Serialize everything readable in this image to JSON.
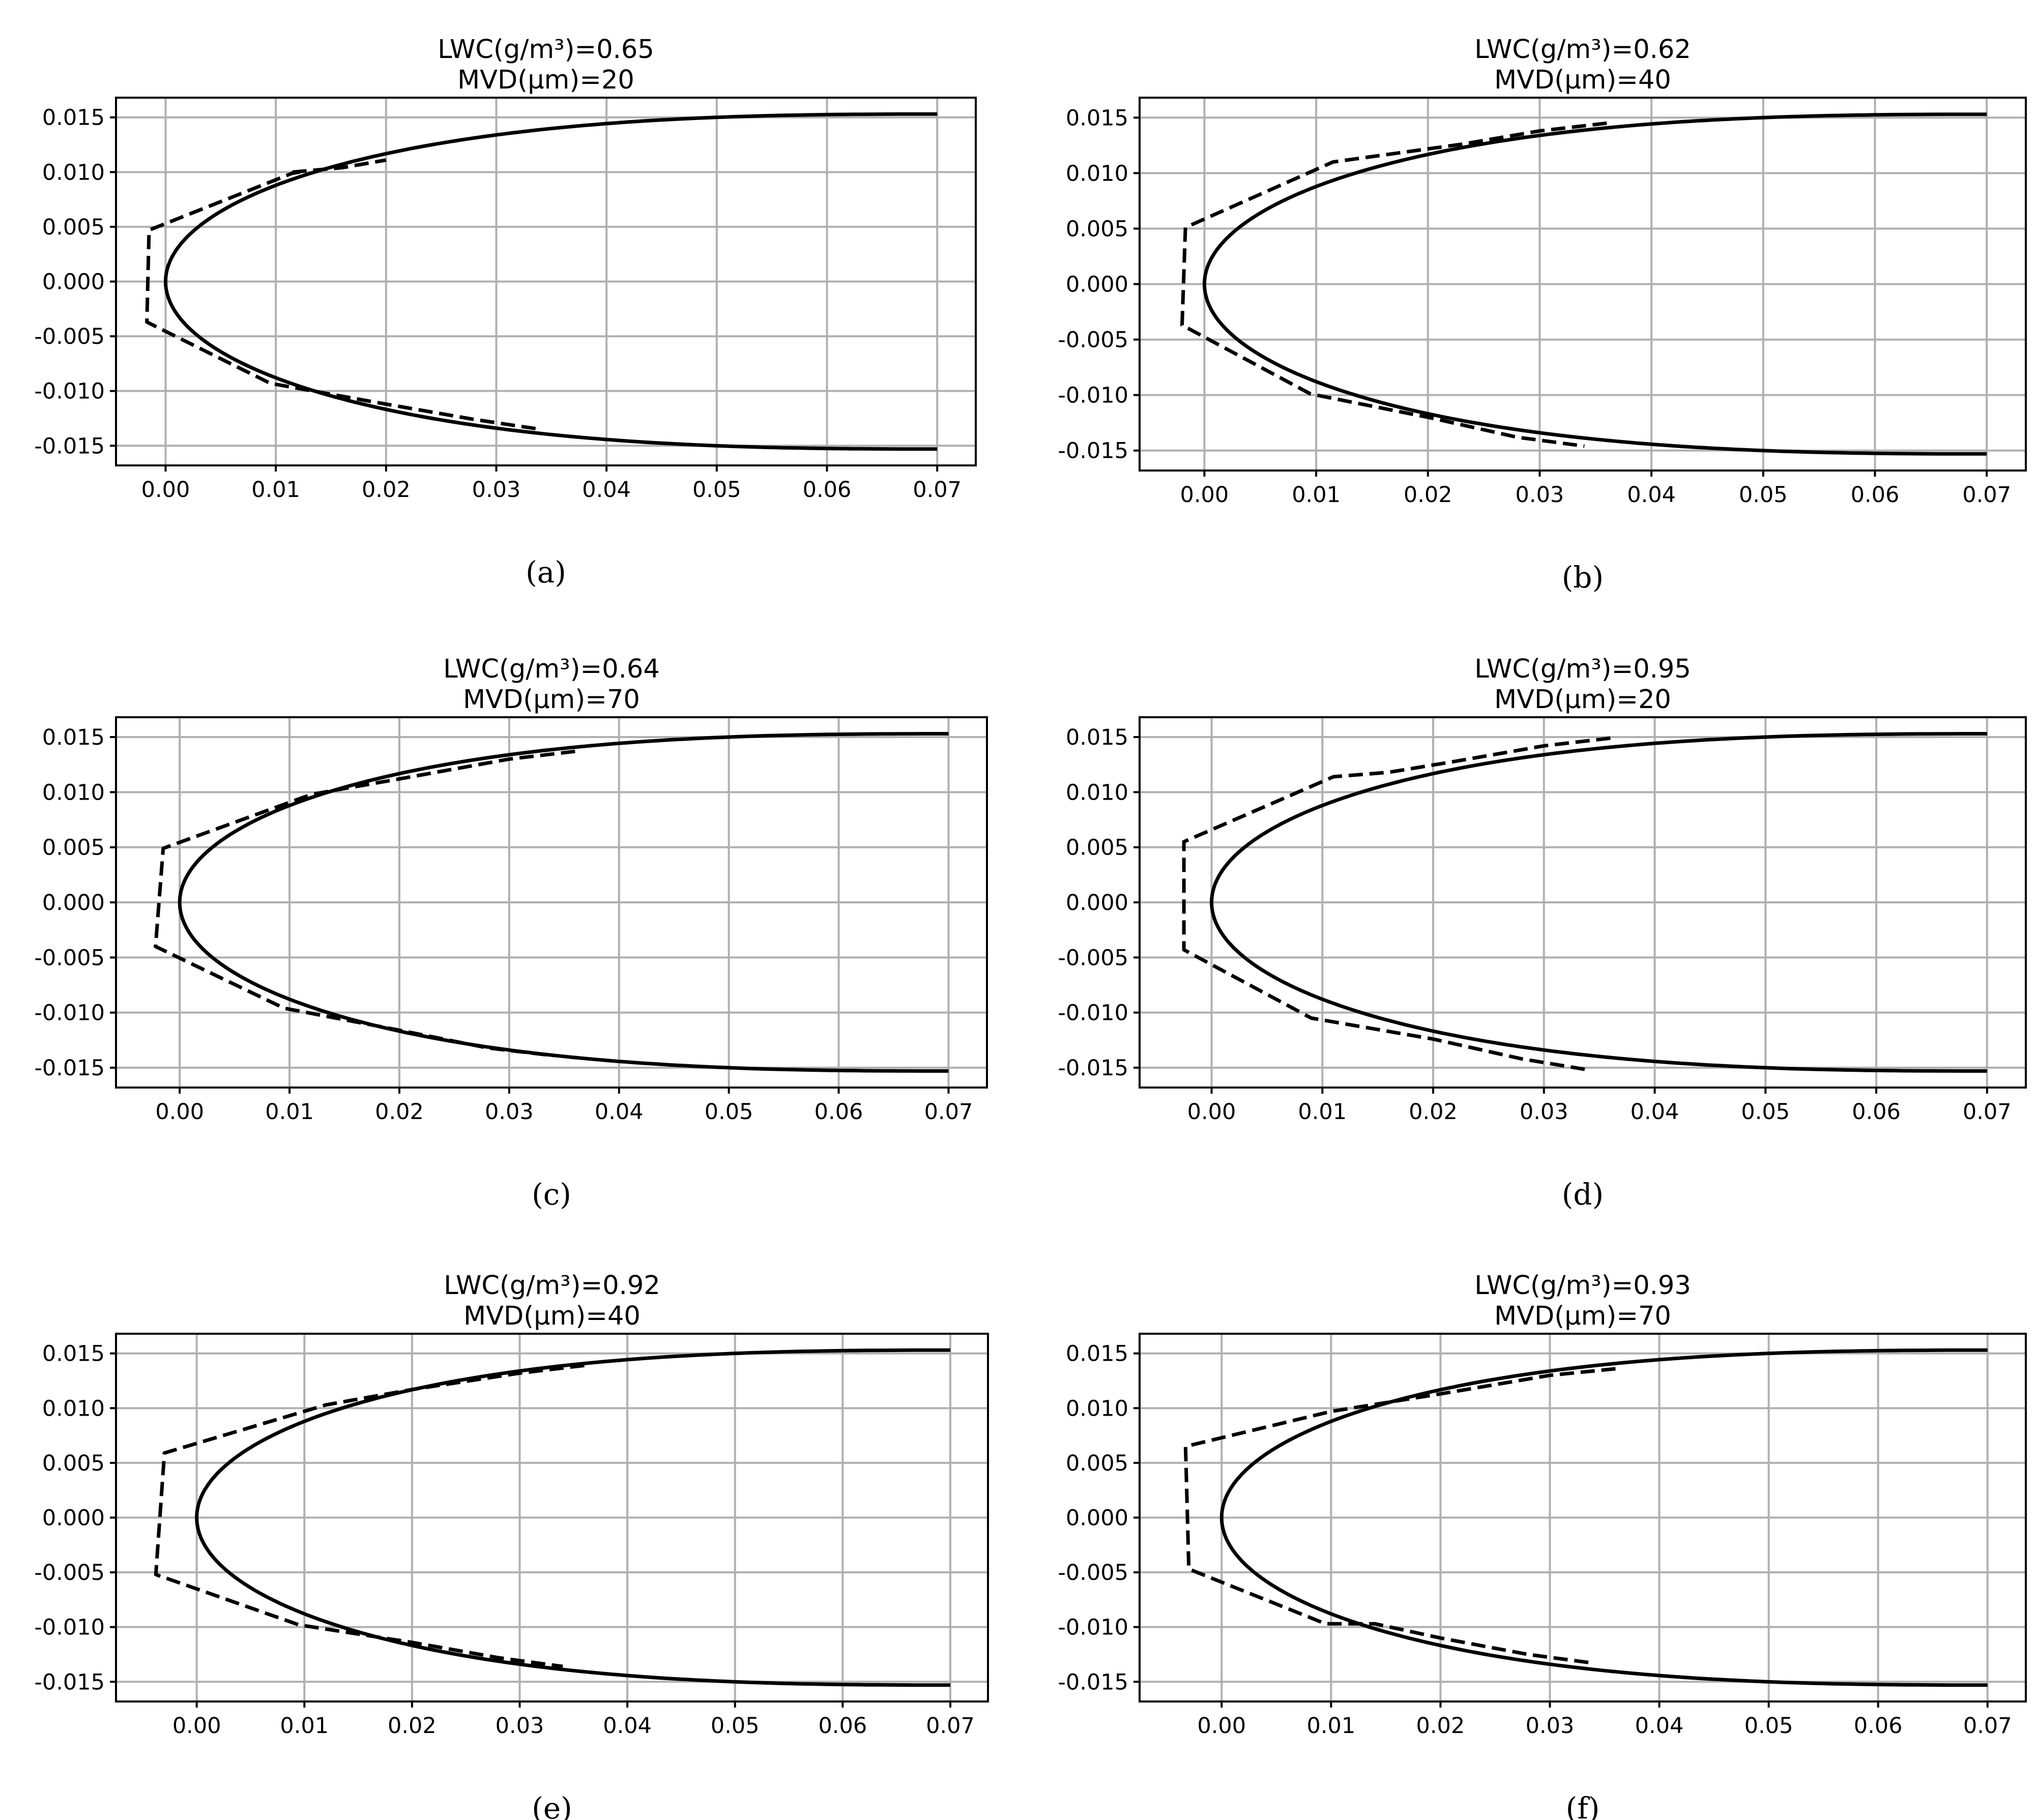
{
  "chart_data": [
    {
      "type": "line",
      "panel": "a",
      "caption": "(a)",
      "title": [
        "LWC(g/m³)=0.65",
        "MVD(μm)=20"
      ],
      "xlim": [
        -0.0045,
        0.0735
      ],
      "ylim": [
        -0.0168,
        0.0168
      ],
      "xticks": [
        0.0,
        0.01,
        0.02,
        0.03,
        0.04,
        0.05,
        0.06,
        0.07
      ],
      "yticks": [
        0.015,
        0.01,
        0.005,
        0.0,
        -0.005,
        -0.01,
        -0.015
      ],
      "xtick_labels": [
        "0.00",
        "0.01",
        "0.02",
        "0.03",
        "0.04",
        "0.05",
        "0.06",
        "0.07"
      ],
      "ytick_labels": [
        "0.015",
        "0.010",
        "0.005",
        "0.000",
        "-0.005",
        "-0.010",
        "-0.015"
      ],
      "grid": true,
      "series": [
        {
          "name": "clean airfoil",
          "style": "solid",
          "shape": "airfoil",
          "chord": 0.07,
          "half_thickness": 0.0153
        },
        {
          "name": "ice shape",
          "style": "dashed",
          "x": [
            0.0122,
            0.0115,
            -0.0015,
            -0.0017,
            0.0095,
            0.02,
            0.028,
            0.034
          ],
          "y": [
            0.01,
            0.0099,
            0.0047,
            -0.0037,
            -0.0093,
            -0.0112,
            -0.0126,
            -0.0135
          ],
          "upper_x": [
            0.0115,
            0.016,
            0.02
          ],
          "upper_y": [
            0.01,
            0.0104,
            0.0111
          ]
        }
      ]
    },
    {
      "type": "line",
      "panel": "b",
      "caption": "(b)",
      "title": [
        "LWC(g/m³)=0.62",
        "MVD(μm)=40"
      ],
      "xlim": [
        -0.0058,
        0.0735
      ],
      "ylim": [
        -0.0168,
        0.0168
      ],
      "xticks": [
        0.0,
        0.01,
        0.02,
        0.03,
        0.04,
        0.05,
        0.06,
        0.07
      ],
      "yticks": [
        0.015,
        0.01,
        0.005,
        0.0,
        -0.005,
        -0.01,
        -0.015
      ],
      "xtick_labels": [
        "0.00",
        "0.01",
        "0.02",
        "0.03",
        "0.04",
        "0.05",
        "0.06",
        "0.07"
      ],
      "ytick_labels": [
        "0.015",
        "0.010",
        "0.005",
        "0.000",
        "-0.005",
        "-0.010",
        "-0.015"
      ],
      "grid": true,
      "series": [
        {
          "name": "clean airfoil",
          "style": "solid",
          "shape": "airfoil",
          "chord": 0.07,
          "half_thickness": 0.0153
        },
        {
          "name": "ice shape",
          "style": "dashed",
          "x": [
            0.036,
            0.03,
            0.023,
            0.0115,
            -0.0017,
            -0.002,
            0.0095,
            0.02,
            0.028,
            0.034
          ],
          "y": [
            0.0145,
            0.0138,
            0.0126,
            0.011,
            0.0051,
            -0.0037,
            -0.0099,
            -0.012,
            -0.0138,
            -0.0146
          ]
        }
      ]
    },
    {
      "type": "line",
      "panel": "c",
      "caption": "(c)",
      "title": [
        "LWC(g/m³)=0.64",
        "MVD(μm)=70"
      ],
      "xlim": [
        -0.0058,
        0.0735
      ],
      "ylim": [
        -0.0168,
        0.0168
      ],
      "xticks": [
        0.0,
        0.01,
        0.02,
        0.03,
        0.04,
        0.05,
        0.06,
        0.07
      ],
      "yticks": [
        0.015,
        0.01,
        0.005,
        0.0,
        -0.005,
        -0.01,
        -0.015
      ],
      "xtick_labels": [
        "0.00",
        "0.01",
        "0.02",
        "0.03",
        "0.04",
        "0.05",
        "0.06",
        "0.07"
      ],
      "ytick_labels": [
        "0.015",
        "0.010",
        "0.005",
        "0.000",
        "-0.005",
        "-0.010",
        "-0.015"
      ],
      "grid": true,
      "series": [
        {
          "name": "clean airfoil",
          "style": "solid",
          "shape": "airfoil",
          "chord": 0.07,
          "half_thickness": 0.0153
        },
        {
          "name": "ice shape",
          "style": "dashed",
          "x": [
            0.036,
            0.03,
            0.02,
            0.012,
            -0.0015,
            -0.0022,
            0.0095,
            0.02,
            0.028,
            0.034
          ],
          "y": [
            0.0137,
            0.013,
            0.0112,
            0.0098,
            0.0049,
            -0.004,
            -0.0096,
            -0.0116,
            -0.0132,
            -0.0139
          ]
        }
      ]
    },
    {
      "type": "line",
      "panel": "d",
      "caption": "(d)",
      "title": [
        "LWC(g/m³)=0.95",
        "MVD(μm)=20"
      ],
      "xlim": [
        -0.0065,
        0.0735
      ],
      "ylim": [
        -0.0168,
        0.0168
      ],
      "xticks": [
        0.0,
        0.01,
        0.02,
        0.03,
        0.04,
        0.05,
        0.06,
        0.07
      ],
      "yticks": [
        0.015,
        0.01,
        0.005,
        0.0,
        -0.005,
        -0.01,
        -0.015
      ],
      "xtick_labels": [
        "0.00",
        "0.01",
        "0.02",
        "0.03",
        "0.04",
        "0.05",
        "0.06",
        "0.07"
      ],
      "ytick_labels": [
        "0.015",
        "0.010",
        "0.005",
        "0.000",
        "-0.005",
        "-0.010",
        "-0.015"
      ],
      "grid": true,
      "series": [
        {
          "name": "clean airfoil",
          "style": "solid",
          "shape": "airfoil",
          "chord": 0.07,
          "half_thickness": 0.0153
        },
        {
          "name": "ice shape",
          "style": "dashed",
          "x": [
            0.036,
            0.03,
            0.022,
            0.016,
            0.011,
            -0.0025,
            -0.0025,
            0.009,
            0.02,
            0.028,
            0.034
          ],
          "y": [
            0.0149,
            0.0142,
            0.0128,
            0.0118,
            0.0114,
            0.0055,
            -0.0043,
            -0.0105,
            -0.0124,
            -0.0142,
            -0.0152
          ]
        }
      ]
    },
    {
      "type": "line",
      "panel": "e",
      "caption": "(e)",
      "title": [
        "LWC(g/m³)=0.92",
        "MVD(μm)=40"
      ],
      "xlim": [
        -0.0075,
        0.0735
      ],
      "ylim": [
        -0.0168,
        0.0168
      ],
      "xticks": [
        0.0,
        0.01,
        0.02,
        0.03,
        0.04,
        0.05,
        0.06,
        0.07
      ],
      "yticks": [
        0.015,
        0.01,
        0.005,
        0.0,
        -0.005,
        -0.01,
        -0.015
      ],
      "xtick_labels": [
        "0.00",
        "0.01",
        "0.02",
        "0.03",
        "0.04",
        "0.05",
        "0.06",
        "0.07"
      ],
      "ytick_labels": [
        "0.015",
        "0.010",
        "0.005",
        "0.000",
        "-0.005",
        "-0.010",
        "-0.015"
      ],
      "grid": true,
      "series": [
        {
          "name": "clean airfoil",
          "style": "solid",
          "shape": "airfoil",
          "chord": 0.07,
          "half_thickness": 0.0153
        },
        {
          "name": "ice shape",
          "style": "dashed",
          "x": [
            0.036,
            0.03,
            0.02,
            0.012,
            -0.003,
            -0.0038,
            0.0095,
            0.02,
            0.028,
            0.034
          ],
          "y": [
            0.0139,
            0.0132,
            0.0117,
            0.0103,
            0.0059,
            -0.0052,
            -0.0098,
            -0.0114,
            -0.0128,
            -0.0136
          ]
        }
      ]
    },
    {
      "type": "line",
      "panel": "f",
      "caption": "(f)",
      "title": [
        "LWC(g/m³)=0.93",
        "MVD(μm)=70"
      ],
      "xlim": [
        -0.0075,
        0.0735
      ],
      "ylim": [
        -0.0168,
        0.0168
      ],
      "xticks": [
        0.0,
        0.01,
        0.02,
        0.03,
        0.04,
        0.05,
        0.06,
        0.07
      ],
      "yticks": [
        0.015,
        0.01,
        0.005,
        0.0,
        -0.005,
        -0.01,
        -0.015
      ],
      "xtick_labels": [
        "0.00",
        "0.01",
        "0.02",
        "0.03",
        "0.04",
        "0.05",
        "0.06",
        "0.07"
      ],
      "ytick_labels": [
        "0.015",
        "0.010",
        "0.005",
        "0.000",
        "-0.005",
        "-0.010",
        "-0.015"
      ],
      "grid": true,
      "series": [
        {
          "name": "clean airfoil",
          "style": "solid",
          "shape": "airfoil",
          "chord": 0.07,
          "half_thickness": 0.0153
        },
        {
          "name": "ice shape",
          "style": "dashed",
          "x": [
            0.036,
            0.03,
            0.02,
            0.01,
            -0.0033,
            -0.003,
            0.0095,
            0.014,
            0.02,
            0.028,
            0.034
          ],
          "y": [
            0.0136,
            0.013,
            0.0113,
            0.0097,
            0.0065,
            -0.0047,
            -0.0097,
            -0.0097,
            -0.011,
            -0.0125,
            -0.0133
          ]
        }
      ]
    }
  ]
}
